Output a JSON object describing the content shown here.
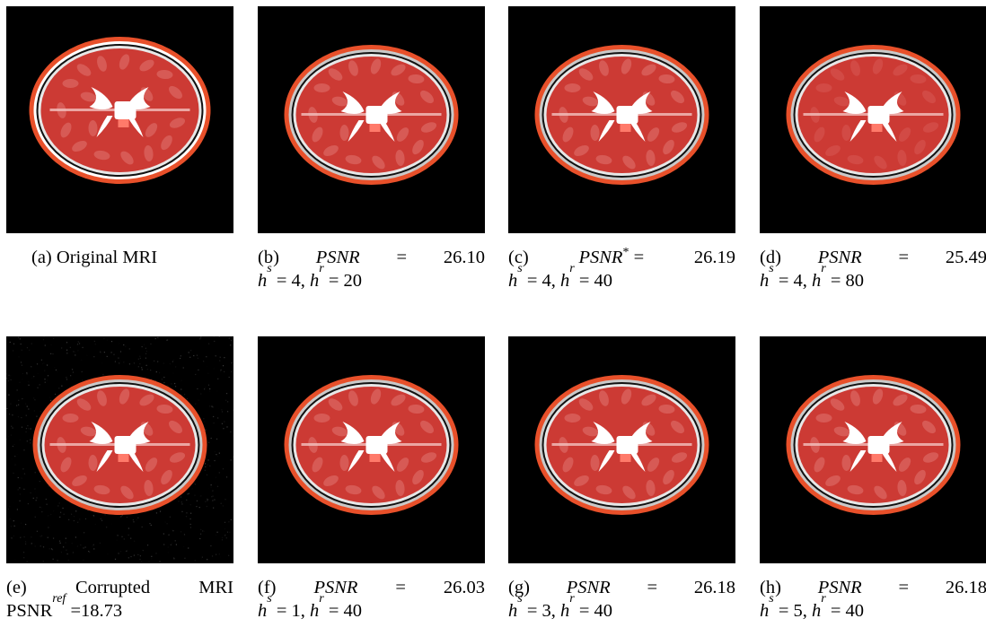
{
  "panels": [
    {
      "id": "a",
      "label": "(a)",
      "line1": "Original MRI",
      "line2": "",
      "variant": "original"
    },
    {
      "id": "b",
      "label": "(b)",
      "metric": "PSNR",
      "star": "",
      "eq": "=",
      "value": "26.10",
      "hs": "4",
      "hr": "20",
      "variant": "smooth"
    },
    {
      "id": "c",
      "label": "(c)",
      "metric": "PSNR",
      "star": "*",
      "eq": "=",
      "value": "26.19",
      "hs": "4",
      "hr": "40",
      "variant": "smooth"
    },
    {
      "id": "d",
      "label": "(d)",
      "metric": "PSNR",
      "star": "",
      "eq": "=",
      "value": "25.49",
      "hs": "4",
      "hr": "80",
      "variant": "oversmooth"
    },
    {
      "id": "e",
      "label": "(e)",
      "line1a": "Corrupted",
      "line1b": "MRI",
      "line2_prefix": "PSNR",
      "line2_sup": "ref",
      "line2_value": "=18.73",
      "variant": "noisy"
    },
    {
      "id": "f",
      "label": "(f)",
      "metric": "PSNR",
      "star": "",
      "eq": "=",
      "value": "26.03",
      "hs": "1",
      "hr": "40",
      "variant": "smooth"
    },
    {
      "id": "g",
      "label": "(g)",
      "metric": "PSNR",
      "star": "",
      "eq": "=",
      "value": "26.18",
      "hs": "3",
      "hr": "40",
      "variant": "smooth"
    },
    {
      "id": "h",
      "label": "(h)",
      "metric": "PSNR",
      "star": "",
      "eq": "=",
      "value": "26.18",
      "hs": "5",
      "hr": "40",
      "variant": "smooth"
    }
  ],
  "symbols": {
    "hs": "h",
    "hs_sub": "s",
    "hr": "h",
    "hr_sub": "r",
    "eq": "="
  },
  "colors": {
    "background": "#000000",
    "skull": "#e8502a",
    "brain": "#cc3a34",
    "brain_light": "#d75a55",
    "ventricle": "#ffffff",
    "dark_ring": "#111111"
  }
}
